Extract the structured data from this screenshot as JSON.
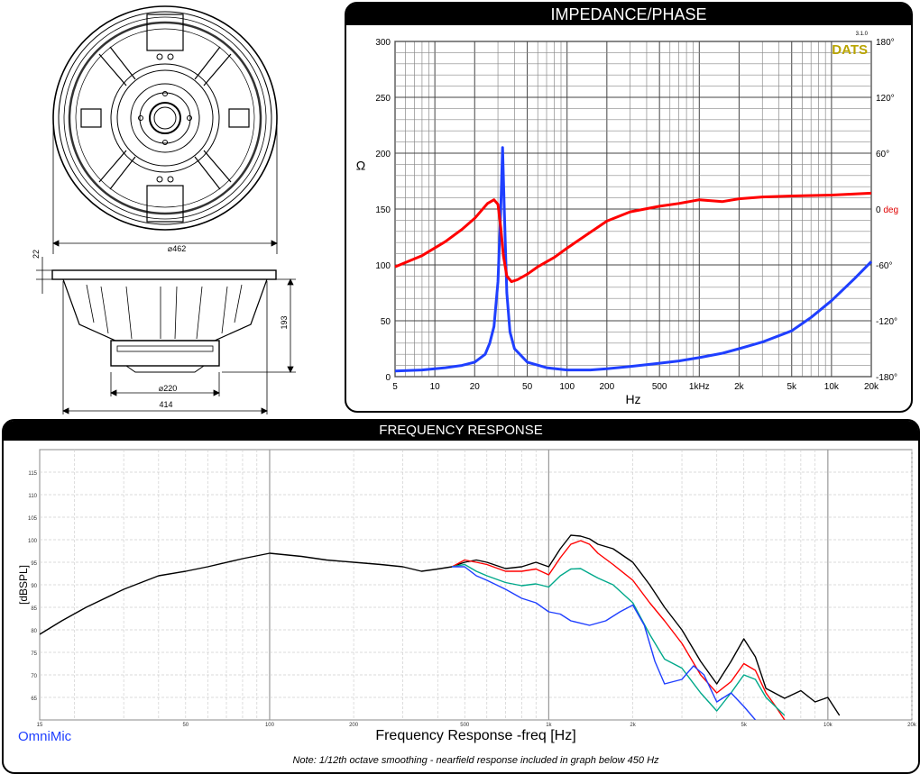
{
  "drawing": {
    "dim_front_dia": "⌀462",
    "dim_flange": "22",
    "dim_depth": "193",
    "dim_magnet": "⌀220",
    "dim_overall": "414"
  },
  "chart_data": [
    {
      "type": "line",
      "title": "IMPEDANCE/PHASE",
      "brand": "DATS",
      "brand_version": "3.1.0",
      "xlabel": "Hz",
      "xscale": "log",
      "xlim": [
        5,
        20000
      ],
      "x_ticks": [
        5,
        10,
        20,
        50,
        100,
        200,
        500,
        1000,
        2000,
        5000,
        10000,
        20000
      ],
      "x_tick_labels": [
        "5",
        "10",
        "20",
        "50",
        "100",
        "200",
        "500",
        "1kHz",
        "2k",
        "5k",
        "10k",
        "20k"
      ],
      "ylabel": "Ω",
      "ylim": [
        0,
        300
      ],
      "y_ticks": [
        0,
        50,
        100,
        150,
        200,
        250,
        300
      ],
      "y_tick_labels": [
        "0",
        "50",
        "100",
        "150",
        "200",
        "250",
        "300"
      ],
      "y2lim": [
        -180,
        180
      ],
      "y2_ticks": [
        180,
        120,
        60,
        0,
        -60,
        -120,
        -180
      ],
      "y2_tick_labels": [
        "180°",
        "120°",
        "60°",
        "0 deg",
        "-60°",
        "-120°",
        "-180°"
      ],
      "grid": true,
      "series": [
        {
          "color": "#1f3fff",
          "axis": "left",
          "x": [
            5,
            8,
            12,
            16,
            20,
            24,
            26,
            28,
            30,
            31.5,
            32.5,
            33.5,
            35,
            37,
            40,
            50,
            70,
            100,
            150,
            200,
            300,
            500,
            700,
            1000,
            1500,
            2000,
            3000,
            5000,
            7000,
            10000,
            15000,
            20000
          ],
          "y": [
            5,
            6,
            8,
            10,
            13,
            20,
            30,
            45,
            85,
            150,
            205,
            150,
            75,
            40,
            25,
            13,
            8,
            6,
            6,
            7,
            9,
            12,
            14,
            17,
            21,
            25,
            31,
            41,
            53,
            68,
            88,
            103
          ]
        },
        {
          "color": "#ff0000",
          "axis": "right",
          "x": [
            5,
            8,
            12,
            16,
            20,
            25,
            28,
            30,
            31.5,
            33,
            35,
            38,
            42,
            50,
            60,
            80,
            100,
            150,
            200,
            300,
            500,
            700,
            1000,
            1500,
            2000,
            3000,
            5000,
            10000,
            20000
          ],
          "y": [
            -62,
            -50,
            -35,
            -22,
            -10,
            6,
            10,
            5,
            -20,
            -50,
            -72,
            -78,
            -76,
            -70,
            -62,
            -52,
            -42,
            -25,
            -13,
            -3,
            3,
            6,
            10,
            8,
            11,
            13,
            14,
            15,
            17
          ]
        }
      ]
    },
    {
      "type": "line",
      "title": "FREQUENCY RESPONSE",
      "xlabel": "Frequency Response -freq [Hz]",
      "ylabel": "[dBSPL]",
      "xscale": "log",
      "xlim": [
        15,
        20000
      ],
      "x_ticks": [
        15,
        50,
        100,
        200,
        500,
        1000,
        2000,
        5000,
        10000,
        20000
      ],
      "x_tick_labels": [
        "15",
        "50",
        "100",
        "200",
        "500",
        "1k",
        "2k",
        "5k",
        "10k",
        "20k"
      ],
      "ylim": [
        60,
        120
      ],
      "y_ticks": [
        65,
        70,
        75,
        80,
        85,
        90,
        95,
        100,
        105,
        110,
        115
      ],
      "y_tick_labels": [
        "65",
        "70",
        "75",
        "80",
        "85",
        "90",
        "95",
        "100",
        "105",
        "110",
        "115"
      ],
      "grid": true,
      "brand": "OmniMic",
      "note": "Note: 1/12th octave smoothing - nearfield response included in graph below 450 Hz",
      "series": [
        {
          "color": "#000000",
          "x": [
            15,
            18,
            22,
            30,
            40,
            50,
            60,
            80,
            100,
            130,
            160,
            200,
            250,
            300,
            350,
            400,
            450,
            500,
            550,
            600,
            700,
            800,
            900,
            1000,
            1100,
            1200,
            1300,
            1400,
            1500,
            1700,
            2000,
            2300,
            2600,
            3000,
            3500,
            4000,
            4500,
            5000,
            5500,
            6000,
            7000,
            8000,
            9000,
            10000,
            11000
          ],
          "y": [
            79,
            82,
            85,
            89,
            92,
            93,
            94,
            95.8,
            97,
            96.3,
            95.5,
            95,
            94.5,
            94,
            93,
            93.5,
            94,
            95,
            95.5,
            95,
            93.6,
            94,
            95,
            94,
            98,
            101,
            100.8,
            100.2,
            99,
            98,
            95,
            90,
            85,
            80,
            73,
            68,
            73,
            78,
            74,
            67,
            64.8,
            66.5,
            64,
            65,
            61
          ]
        },
        {
          "color": "#ff0000",
          "x": [
            450,
            500,
            550,
            600,
            700,
            800,
            900,
            1000,
            1100,
            1200,
            1300,
            1400,
            1500,
            1700,
            2000,
            2300,
            2600,
            3000,
            3500,
            4000,
            4500,
            5000,
            5500,
            6000,
            6500,
            7000
          ],
          "y": [
            94,
            95.5,
            95,
            94.5,
            93,
            93,
            93.5,
            92.2,
            96,
            99,
            99.8,
            99,
            97,
            94.5,
            91,
            86,
            82,
            77,
            70,
            66,
            68.5,
            72.5,
            71,
            66,
            63,
            60
          ]
        },
        {
          "color": "#00a88a",
          "x": [
            450,
            500,
            550,
            600,
            700,
            800,
            900,
            1000,
            1100,
            1200,
            1300,
            1400,
            1500,
            1700,
            2000,
            2300,
            2600,
            3000,
            3500,
            4000,
            4500,
            5000,
            5500,
            6000,
            7000
          ],
          "y": [
            94,
            94.5,
            93,
            92,
            90.5,
            89.8,
            90.2,
            89.5,
            92,
            93.5,
            93.6,
            92.5,
            91.5,
            90,
            86,
            79,
            73.5,
            71.5,
            66,
            62,
            66,
            70,
            69,
            65,
            61
          ]
        },
        {
          "color": "#1f3fff",
          "x": [
            450,
            500,
            550,
            600,
            700,
            800,
            900,
            1000,
            1100,
            1200,
            1400,
            1600,
            1800,
            2000,
            2200,
            2400,
            2600,
            3000,
            3300,
            3600,
            4000,
            4500,
            5000,
            5500
          ],
          "y": [
            94,
            94,
            92,
            91,
            89,
            87,
            86,
            84,
            83.5,
            82,
            81,
            82,
            84,
            85.5,
            81,
            73,
            68,
            69,
            72,
            70,
            64,
            66,
            63,
            60
          ]
        }
      ]
    }
  ]
}
